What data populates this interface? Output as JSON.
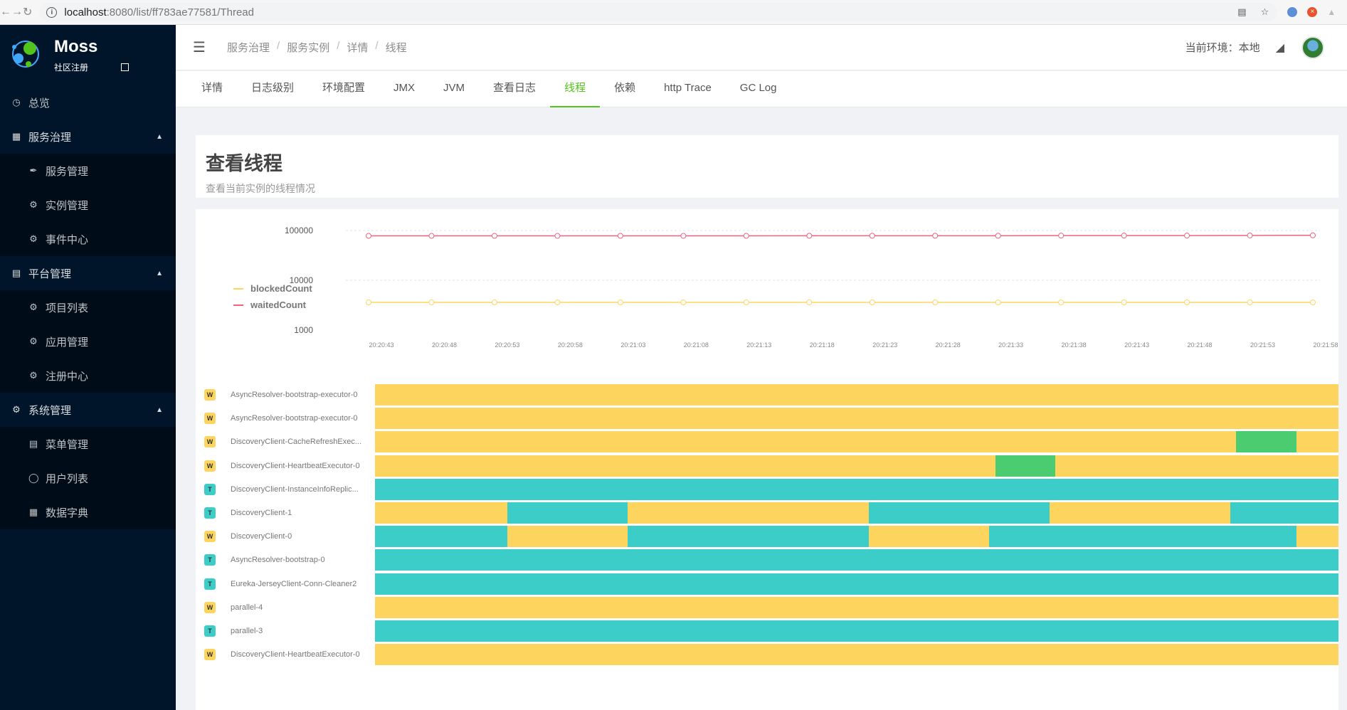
{
  "browser": {
    "url_host": "localhost",
    "url_path": ":8080/list/ff783ae77581/Thread"
  },
  "sidebar": {
    "app_name": "Moss",
    "app_sub": "社区注册",
    "overview": "总览",
    "groups": [
      {
        "label": "服务治理",
        "items": [
          "服务管理",
          "实例管理",
          "事件中心"
        ]
      },
      {
        "label": "平台管理",
        "items": [
          "项目列表",
          "应用管理",
          "注册中心"
        ]
      },
      {
        "label": "系统管理",
        "items": [
          "菜单管理",
          "用户列表",
          "数据字典"
        ]
      }
    ]
  },
  "header": {
    "breadcrumb": [
      "服务治理",
      "服务实例",
      "详情",
      "线程"
    ],
    "env_label": "当前环境：本地"
  },
  "tabs": [
    "详情",
    "日志级别",
    "环境配置",
    "JMX",
    "JVM",
    "查看日志",
    "线程",
    "依赖",
    "http Trace",
    "GC Log"
  ],
  "active_tab": "线程",
  "page": {
    "title": "查看线程",
    "description": "查看当前实例的线程情况"
  },
  "colors": {
    "accent": "#52c41a",
    "waiting": "#fdd55e",
    "timed_waiting": "#3ccdc9",
    "runnable": "#4ccc70",
    "waited_line": "#f0637c",
    "blocked_line": "#fdd55e"
  },
  "chart_data": {
    "type": "line",
    "yscale": "log",
    "yticks": [
      "100000",
      "10000",
      "1000"
    ],
    "ylim": [
      1000,
      100000
    ],
    "x": [
      "20:20:43",
      "20:20:48",
      "20:20:53",
      "20:20:58",
      "20:21:03",
      "20:21:08",
      "20:21:13",
      "20:21:18",
      "20:21:23",
      "20:21:28",
      "20:21:33",
      "20:21:38",
      "20:21:43",
      "20:21:48",
      "20:21:53",
      "20:21:58"
    ],
    "series": [
      {
        "name": "blockedCount",
        "values": [
          3600,
          3600,
          3600,
          3600,
          3600,
          3600,
          3600,
          3600,
          3600,
          3600,
          3600,
          3600,
          3600,
          3600,
          3600,
          3600
        ]
      },
      {
        "name": "waitedCount",
        "values": [
          78000,
          78000,
          78000,
          78000,
          78000,
          78000,
          78000,
          78500,
          78500,
          78500,
          78500,
          79000,
          79000,
          79000,
          79500,
          80000
        ]
      }
    ],
    "legend": [
      "blockedCount",
      "waitedCount"
    ]
  },
  "threads": [
    {
      "badge": "W",
      "name": "AsyncResolver-bootstrap-executor-0",
      "segments": [
        [
          "W",
          16
        ]
      ]
    },
    {
      "badge": "W",
      "name": "AsyncResolver-bootstrap-executor-0",
      "segments": [
        [
          "W",
          16
        ]
      ]
    },
    {
      "badge": "W",
      "name": "DiscoveryClient-CacheRefreshExec...",
      "segments": [
        [
          "W",
          14.3
        ],
        [
          "R",
          1
        ],
        [
          "W",
          0.7
        ]
      ]
    },
    {
      "badge": "W",
      "name": "DiscoveryClient-HeartbeatExecutor-0",
      "segments": [
        [
          "W",
          10.3
        ],
        [
          "R",
          1
        ],
        [
          "W",
          4.7
        ]
      ]
    },
    {
      "badge": "T",
      "name": "DiscoveryClient-InstanceInfoReplic...",
      "segments": [
        [
          "T",
          16
        ]
      ]
    },
    {
      "badge": "T",
      "name": "DiscoveryClient-1",
      "segments": [
        [
          "W",
          2.2
        ],
        [
          "T",
          2
        ],
        [
          "W",
          4
        ],
        [
          "T",
          3
        ],
        [
          "W",
          3
        ],
        [
          "T",
          1.8
        ]
      ]
    },
    {
      "badge": "W",
      "name": "DiscoveryClient-0",
      "segments": [
        [
          "T",
          2.2
        ],
        [
          "W",
          2
        ],
        [
          "T",
          4
        ],
        [
          "W",
          2
        ],
        [
          "T",
          5.1
        ],
        [
          "W",
          0.7
        ]
      ]
    },
    {
      "badge": "T",
      "name": "AsyncResolver-bootstrap-0",
      "segments": [
        [
          "T",
          16
        ]
      ]
    },
    {
      "badge": "T",
      "name": "Eureka-JerseyClient-Conn-Cleaner2",
      "segments": [
        [
          "T",
          16
        ]
      ]
    },
    {
      "badge": "W",
      "name": "parallel-4",
      "segments": [
        [
          "W",
          16
        ]
      ]
    },
    {
      "badge": "T",
      "name": "parallel-3",
      "segments": [
        [
          "T",
          16
        ]
      ]
    },
    {
      "badge": "W",
      "name": "DiscoveryClient-HeartbeatExecutor-0",
      "segments": [
        [
          "W",
          16
        ]
      ]
    }
  ]
}
